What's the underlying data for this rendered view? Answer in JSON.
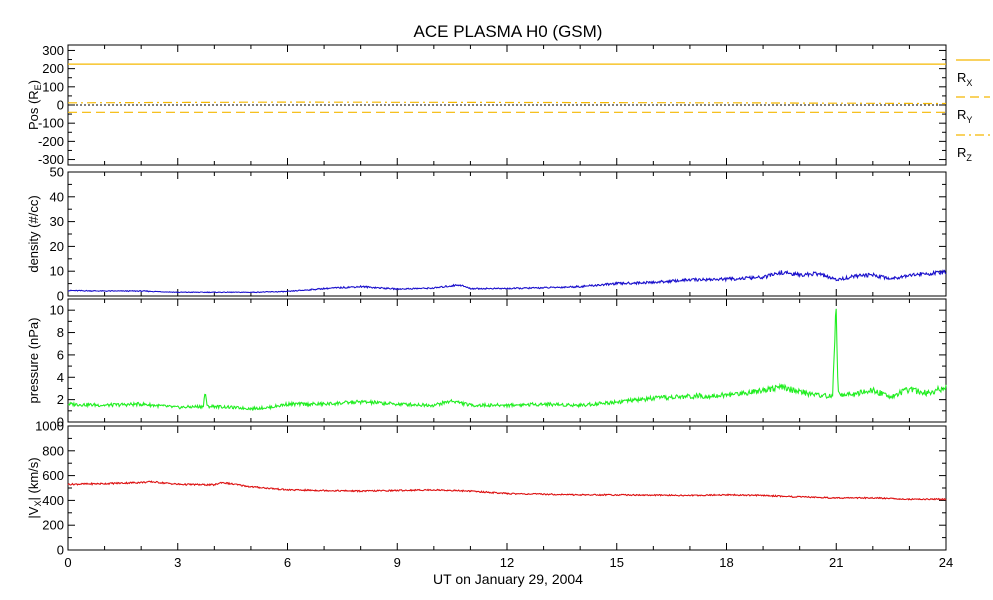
{
  "chart_data": {
    "type": "line",
    "title": "ACE PLASMA H0 (GSM)",
    "xlabel": "UT on January 29, 2004",
    "xlim": [
      0,
      24
    ],
    "x_ticks": [
      0,
      3,
      6,
      9,
      12,
      15,
      18,
      21,
      24
    ],
    "x_tick_labels": [
      "0",
      "3",
      "6",
      "9",
      "12",
      "15",
      "18",
      "21",
      "24"
    ],
    "colors": {
      "pos": "#f5b800",
      "density": "#1a10cc",
      "pressure": "#22ee22",
      "vx": "#dd1111"
    },
    "panels": [
      {
        "id": "pos",
        "ylabel": "Pos (R",
        "ylabel_sub": "E",
        "ylabel_end": ")",
        "ylim": [
          -330,
          330
        ],
        "y_ticks": [
          -300,
          -200,
          -100,
          0,
          100,
          200,
          300
        ],
        "y_tick_labels": [
          "-300",
          "-200",
          "-100",
          "0",
          "100",
          "200",
          "300"
        ],
        "zero_line": true,
        "legend": [
          {
            "name": "R",
            "sub": "X",
            "dash": "solid"
          },
          {
            "name": "R",
            "sub": "Y",
            "dash": "dashed"
          },
          {
            "name": "R",
            "sub": "Z",
            "dash": "dashdot"
          }
        ],
        "series": [
          {
            "name": "RX",
            "x": [
              0,
              24
            ],
            "values": [
              225,
              225
            ]
          },
          {
            "name": "RY",
            "x": [
              0,
              24
            ],
            "values": [
              -40,
              -40
            ]
          },
          {
            "name": "RZ",
            "x": [
              0,
              6,
              12,
              18,
              24
            ],
            "values": [
              12,
              16,
              14,
              12,
              8
            ]
          }
        ]
      },
      {
        "id": "density",
        "ylabel": "density (#/cc)",
        "ylim": [
          0,
          50
        ],
        "y_ticks": [
          0,
          10,
          20,
          30,
          40,
          50
        ],
        "y_tick_labels": [
          "0",
          "10",
          "20",
          "30",
          "40",
          "50"
        ],
        "series": [
          {
            "name": "density",
            "x": [
              0,
              1,
              2,
              3,
              4,
              5,
              6,
              7,
              8,
              9,
              10,
              10.7,
              11,
              12,
              13,
              14,
              15,
              16,
              17,
              18,
              19,
              19.5,
              20,
              20.5,
              21,
              21.5,
              22,
              22.5,
              23,
              23.5,
              24
            ],
            "values": [
              2.2,
              2.0,
              2.0,
              1.5,
              1.5,
              1.5,
              1.8,
              3.0,
              3.8,
              2.8,
              3.2,
              4.5,
              3.0,
              3.0,
              3.3,
              3.8,
              5.0,
              5.5,
              6.5,
              6.8,
              7.5,
              9.5,
              8.5,
              9.0,
              6.5,
              8.0,
              8.5,
              7.0,
              8.5,
              9.0,
              9.5
            ]
          }
        ]
      },
      {
        "id": "pressure",
        "ylabel": "pressure (nPa)",
        "ylim": [
          0,
          11
        ],
        "y_ticks": [
          0,
          2,
          4,
          6,
          8,
          10
        ],
        "y_tick_labels": [
          "0",
          "2",
          "4",
          "6",
          "8",
          "10"
        ],
        "series": [
          {
            "name": "pressure",
            "x": [
              0,
              1,
              2,
              3,
              3.7,
              3.75,
              3.8,
              3.85,
              4,
              5,
              5.5,
              6,
              7,
              8,
              9,
              10,
              10.5,
              11,
              12,
              13,
              14,
              15,
              16,
              17,
              18,
              18.5,
              19,
              19.5,
              20,
              20.5,
              20.9,
              20.95,
              21.0,
              21.05,
              21.1,
              21.5,
              22,
              22.5,
              23,
              23.5,
              24
            ],
            "values": [
              1.6,
              1.5,
              1.6,
              1.3,
              1.4,
              2.8,
              1.4,
              1.4,
              1.4,
              1.2,
              1.3,
              1.6,
              1.6,
              1.8,
              1.6,
              1.5,
              1.9,
              1.5,
              1.5,
              1.6,
              1.5,
              1.8,
              2.1,
              2.3,
              2.4,
              2.6,
              2.9,
              3.1,
              2.7,
              2.4,
              2.3,
              7.0,
              9.8,
              3.0,
              2.4,
              2.5,
              2.8,
              2.3,
              2.9,
              2.6,
              3.1
            ]
          }
        ]
      },
      {
        "id": "vx",
        "ylabel": "|V",
        "ylabel_sub": "X",
        "ylabel_end": "| (km/s)",
        "ylim": [
          0,
          1000
        ],
        "y_ticks": [
          0,
          200,
          400,
          600,
          800,
          1000
        ],
        "y_tick_labels": [
          "0",
          "200",
          "400",
          "600",
          "800",
          "1000"
        ],
        "series": [
          {
            "name": "vx",
            "x": [
              0,
              1,
              2,
              2.3,
              3,
              4,
              4.2,
              5,
              6,
              7,
              8,
              9,
              10,
              11,
              12,
              13,
              14,
              15,
              16,
              17,
              18,
              19,
              20,
              21,
              22,
              23,
              24
            ],
            "values": [
              530,
              535,
              545,
              550,
              530,
              525,
              545,
              510,
              485,
              480,
              475,
              480,
              485,
              475,
              455,
              450,
              445,
              445,
              442,
              440,
              445,
              440,
              428,
              420,
              420,
              410,
              410
            ]
          }
        ]
      }
    ]
  }
}
